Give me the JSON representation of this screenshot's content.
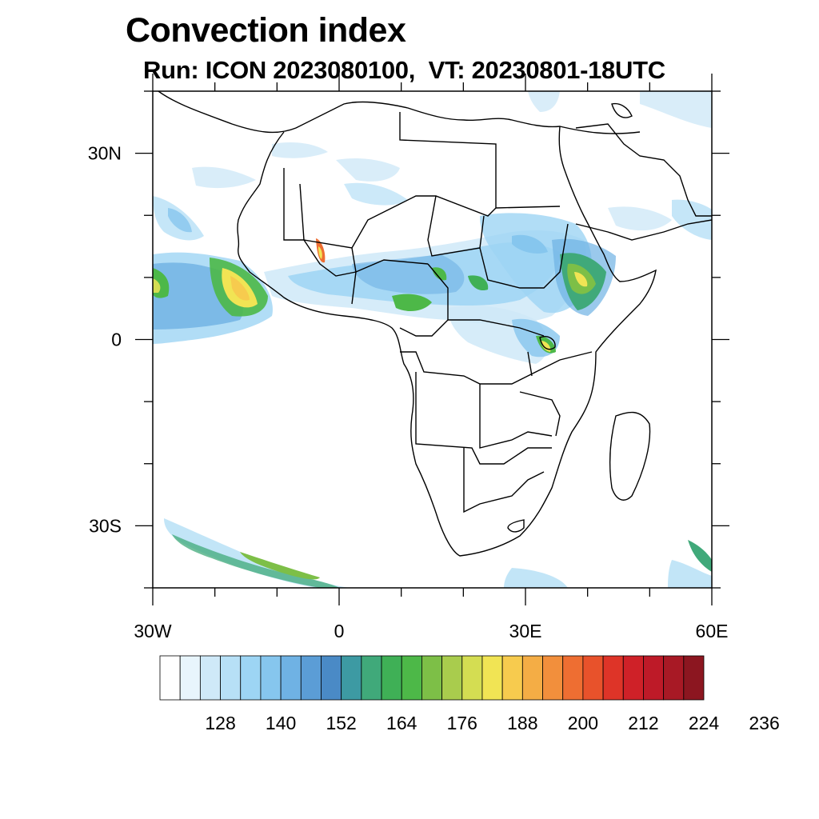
{
  "title": "Convection index",
  "subtitle": "Run: ICON 2023080100,  VT: 20230801-18UTC",
  "map": {
    "region": "Africa",
    "lon_range": [
      -30,
      60
    ],
    "lat_range": [
      -40,
      40
    ],
    "lon_ticks": [
      {
        "lon": -30,
        "label": "30W"
      },
      {
        "lon": 0,
        "label": "0"
      },
      {
        "lon": 30,
        "label": "30E"
      },
      {
        "lon": 60,
        "label": "60E"
      }
    ],
    "lat_ticks": [
      {
        "lat": 30,
        "label": "30N"
      },
      {
        "lat": 0,
        "label": "0"
      },
      {
        "lat": -30,
        "label": "30S"
      }
    ]
  },
  "colorbar": {
    "colors": [
      "#ffffff",
      "#e8f5fc",
      "#cfe9f8",
      "#b7e0f6",
      "#9dd5f4",
      "#86c6ee",
      "#6fb2e4",
      "#5b9dd6",
      "#4a8ac6",
      "#3d9aa3",
      "#40a97a",
      "#3fb056",
      "#4db848",
      "#7dbf47",
      "#a9cc4d",
      "#d4dd52",
      "#f1e454",
      "#f7cb4e",
      "#f4ad45",
      "#f28f3c",
      "#ee6e32",
      "#e8522b",
      "#de3428",
      "#cf2128",
      "#be1a28",
      "#a81925",
      "#8c1620"
    ],
    "labels": [
      "128",
      "140",
      "152",
      "164",
      "176",
      "188",
      "200",
      "212",
      "224",
      "236"
    ]
  }
}
